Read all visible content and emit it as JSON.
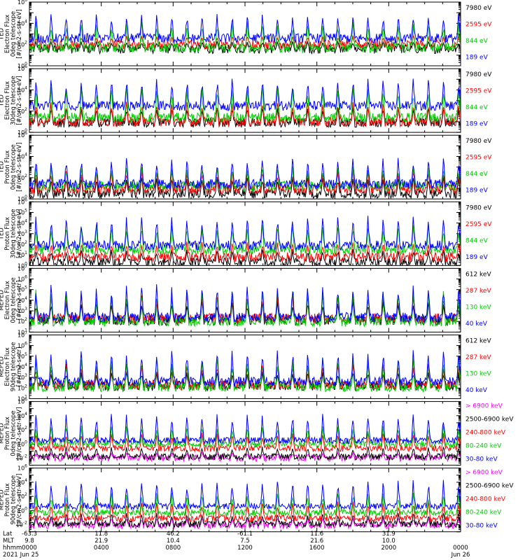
{
  "chart_data": [
    {
      "type": "line",
      "yaxis_title": [
        "TED",
        "Electron Flux",
        "0deg telescope",
        "[#/cm2-s-str-eV]"
      ],
      "ylim": [
        1,
        1000000
      ],
      "yscale": "log",
      "ytick_exponents": [
        0,
        2,
        4,
        6
      ],
      "legend": [
        {
          "label": "7980 eV",
          "color": "#000000"
        },
        {
          "label": "2595 eV",
          "color": "#ff0000"
        },
        {
          "label": "844 eV",
          "color": "#00cc00"
        },
        {
          "label": "189 eV",
          "color": "#0000ff"
        }
      ],
      "series_profile": {
        "base": [
          1.6,
          2.0,
          1.7,
          2.6
        ],
        "peak": [
          2.3,
          2.8,
          4.1,
          4.8
        ]
      }
    },
    {
      "type": "line",
      "yaxis_title": [
        "TED",
        "Electron Flux",
        "30deg telescope",
        "[#/cm2-s-str-eV]"
      ],
      "ylim": [
        1,
        1000000
      ],
      "yscale": "log",
      "ytick_exponents": [
        0,
        2,
        4,
        6
      ],
      "legend": [
        {
          "label": "7980 eV",
          "color": "#000000"
        },
        {
          "label": "2595 eV",
          "color": "#ff0000"
        },
        {
          "label": "844 eV",
          "color": "#00cc00"
        },
        {
          "label": "189 eV",
          "color": "#0000ff"
        }
      ],
      "series_profile": {
        "base": [
          0.9,
          1.0,
          1.4,
          2.5
        ],
        "peak": [
          2.4,
          2.8,
          4.2,
          5.0
        ]
      }
    },
    {
      "type": "line",
      "yaxis_title": [
        "TED",
        "Proton Flux",
        "0deg telescope",
        "[#/cm2-s-str-eV]"
      ],
      "ylim": [
        1,
        1000000
      ],
      "yscale": "log",
      "ytick_exponents": [
        0,
        2,
        4,
        6
      ],
      "legend": [
        {
          "label": "7980 eV",
          "color": "#000000"
        },
        {
          "label": "2595 eV",
          "color": "#ff0000"
        },
        {
          "label": "844 eV",
          "color": "#00cc00"
        },
        {
          "label": "189 eV",
          "color": "#0000ff"
        }
      ],
      "series_profile": {
        "base": [
          0.5,
          0.9,
          1.2,
          1.4
        ],
        "peak": [
          2.0,
          2.6,
          3.0,
          3.8
        ]
      }
    },
    {
      "type": "line",
      "yaxis_title": [
        "TED",
        "Proton Flux",
        "30deg telescope",
        "[#/cm2-s-str-eV]"
      ],
      "ylim": [
        1,
        1000000
      ],
      "yscale": "log",
      "ytick_exponents": [
        0,
        1,
        2,
        3,
        4,
        5,
        6
      ],
      "legend": [
        {
          "label": "7980 eV",
          "color": "#000000"
        },
        {
          "label": "2595 eV",
          "color": "#ff0000"
        },
        {
          "label": "844 eV",
          "color": "#00cc00"
        },
        {
          "label": "189 eV",
          "color": "#0000ff"
        }
      ],
      "series_profile": {
        "base": [
          0.3,
          0.8,
          1.5,
          1.9
        ],
        "peak": [
          1.5,
          2.2,
          3.8,
          4.6
        ]
      }
    },
    {
      "type": "line",
      "yaxis_title": [
        "MEPED",
        "Electron Flux",
        "0deg telescope",
        "[#/cm2-s-str]"
      ],
      "ylim": [
        10,
        10000000
      ],
      "yscale": "log",
      "ytick_exponents": [
        1,
        2,
        3,
        4,
        5,
        6,
        7
      ],
      "legend": [
        {
          "label": "612 keV",
          "color": "#000000"
        },
        {
          "label": "287 keV",
          "color": "#ff0000"
        },
        {
          "label": "130 keV",
          "color": "#00cc00"
        },
        {
          "label": "40 keV",
          "color": "#0000ff"
        }
      ],
      "series_profile": {
        "base": [
          2.1,
          2.3,
          2.0,
          2.4
        ],
        "peak": [
          3.8,
          4.5,
          4.9,
          5.4
        ]
      }
    },
    {
      "type": "line",
      "yaxis_title": [
        "MEPED",
        "Electron Flux",
        "90deg telescope",
        "[#/cm2-s-str]"
      ],
      "ylim": [
        10,
        10000000
      ],
      "yscale": "log",
      "ytick_exponents": [
        1,
        2,
        3,
        4,
        5,
        6,
        7
      ],
      "legend": [
        {
          "label": "612 keV",
          "color": "#000000"
        },
        {
          "label": "287 keV",
          "color": "#ff0000"
        },
        {
          "label": "130 keV",
          "color": "#00cc00"
        },
        {
          "label": "40 keV",
          "color": "#0000ff"
        }
      ],
      "series_profile": {
        "base": [
          2.2,
          2.3,
          2.1,
          2.6
        ],
        "peak": [
          3.5,
          4.2,
          4.8,
          5.5
        ]
      }
    },
    {
      "type": "line",
      "yaxis_title": [
        "MEPED",
        "Proton Flux",
        "0deg telescope",
        "[#/cm2-s-str-keV]"
      ],
      "ylim": [
        0.001,
        1000000
      ],
      "yscale": "log",
      "ytick_exponents": [
        -2,
        0,
        2,
        4,
        6
      ],
      "legend": [
        {
          "label": "> 6900 keV",
          "color": "#ff00ff"
        },
        {
          "label": "2500-6900 keV",
          "color": "#000000"
        },
        {
          "label": "240-800 keV",
          "color": "#ff0000"
        },
        {
          "label": "80-240 keV",
          "color": "#00cc00"
        },
        {
          "label": "30-80 keV",
          "color": "#0000ff"
        }
      ],
      "series_profile": {
        "base": [
          -2.0,
          -1.8,
          -0.6,
          0.0,
          0.5
        ],
        "peak": [
          -1.2,
          -0.4,
          1.5,
          2.5,
          4.2
        ]
      }
    },
    {
      "type": "line",
      "yaxis_title": [
        "MEPED",
        "Proton Flux",
        "90deg telescope",
        "[#/cm2-s-str-keV]"
      ],
      "ylim": [
        0.001,
        1000000
      ],
      "yscale": "log",
      "ytick_exponents": [
        -2,
        0,
        2,
        4,
        6
      ],
      "legend": [
        {
          "label": "> 6900 keV",
          "color": "#ff00ff"
        },
        {
          "label": "2500-6900 keV",
          "color": "#000000"
        },
        {
          "label": "240-800 keV",
          "color": "#ff0000"
        },
        {
          "label": "80-240 keV",
          "color": "#00cc00"
        },
        {
          "label": "30-80 keV",
          "color": "#0000ff"
        }
      ],
      "series_profile": {
        "base": [
          -2.1,
          -1.9,
          -1.1,
          -0.3,
          0.6
        ],
        "peak": [
          -1.0,
          -0.4,
          1.2,
          2.4,
          4.2
        ]
      }
    }
  ],
  "x_axis": {
    "row_labels": [
      "Lat",
      "MLT",
      "hhmm",
      "2021"
    ],
    "ticks": [
      {
        "lat": "-63.3",
        "mlt": "9.8",
        "hhmm": "0000",
        "date": "Jun 25"
      },
      {
        "lat": "11.8",
        "mlt": "21.9",
        "hhmm": "0400",
        "date": ""
      },
      {
        "lat": "46.2",
        "mlt": "10.4",
        "hhmm": "0800",
        "date": ""
      },
      {
        "lat": "-61.1",
        "mlt": "7.5",
        "hhmm": "1200",
        "date": ""
      },
      {
        "lat": "11.6",
        "mlt": "21.6",
        "hhmm": "1600",
        "date": ""
      },
      {
        "lat": "31.9",
        "mlt": "10.0",
        "hhmm": "2000",
        "date": ""
      },
      {
        "lat": "",
        "mlt": "",
        "hhmm": "0000",
        "date": "Jun 26"
      }
    ],
    "span_hours": [
      0,
      24
    ]
  }
}
